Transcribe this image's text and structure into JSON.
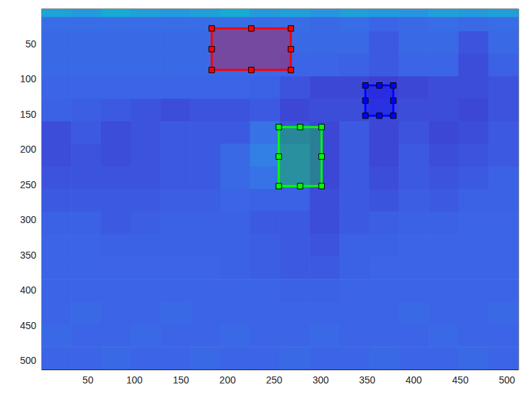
{
  "chart_data": {
    "type": "image",
    "xlim": [
      0.5,
      512.5
    ],
    "ylim": [
      512.5,
      0.5
    ],
    "xticks": [
      50,
      100,
      150,
      200,
      250,
      300,
      350,
      400,
      450,
      500
    ],
    "yticks": [
      50,
      100,
      150,
      200,
      250,
      300,
      350,
      400,
      450,
      500
    ],
    "grid": false,
    "clim": [
      0,
      100
    ],
    "cells": {
      "x_edges": [
        0.5,
        32,
        64,
        96,
        128,
        160,
        192,
        224,
        256,
        288,
        320,
        352,
        384,
        416,
        448,
        480,
        512.5
      ],
      "y_edges": [
        0.5,
        12,
        32,
        64,
        96,
        128,
        160,
        192,
        224,
        256,
        288,
        320,
        352,
        384,
        416,
        448,
        480,
        512.5
      ],
      "values": [
        [
          45,
          42,
          48,
          44,
          42,
          44,
          48,
          42,
          44,
          40,
          44,
          42,
          40,
          44,
          42,
          44
        ],
        [
          29,
          29,
          29,
          29,
          29,
          29,
          29,
          29,
          29,
          28,
          29,
          27,
          28,
          29,
          28,
          29
        ],
        [
          28,
          28,
          28,
          28,
          28,
          28,
          28,
          28,
          28,
          28,
          28,
          24,
          28,
          28,
          22,
          28
        ],
        [
          28,
          28,
          28,
          28,
          28,
          28,
          28,
          28,
          27,
          27,
          26,
          24,
          27,
          27,
          20,
          26
        ],
        [
          27,
          27,
          27,
          27,
          27,
          27,
          27,
          26,
          22,
          18,
          18,
          16,
          18,
          20,
          20,
          22
        ],
        [
          26,
          25,
          24,
          22,
          20,
          22,
          22,
          24,
          18,
          20,
          20,
          18,
          20,
          20,
          18,
          22
        ],
        [
          20,
          24,
          20,
          22,
          24,
          24,
          24,
          30,
          22,
          18,
          24,
          18,
          22,
          18,
          20,
          24
        ],
        [
          20,
          22,
          20,
          22,
          24,
          24,
          28,
          33,
          26,
          18,
          24,
          18,
          24,
          20,
          22,
          24
        ],
        [
          22,
          22,
          22,
          22,
          24,
          24,
          28,
          30,
          26,
          18,
          24,
          20,
          24,
          22,
          24,
          26
        ],
        [
          24,
          24,
          24,
          24,
          25,
          25,
          27,
          26,
          26,
          20,
          24,
          22,
          25,
          24,
          26,
          26
        ],
        [
          26,
          26,
          24,
          25,
          26,
          26,
          26,
          24,
          24,
          20,
          24,
          25,
          26,
          26,
          27,
          27
        ],
        [
          27,
          27,
          26,
          26,
          26,
          26,
          26,
          25,
          24,
          22,
          26,
          26,
          27,
          27,
          27,
          27
        ],
        [
          27,
          27,
          27,
          27,
          27,
          27,
          26,
          25,
          24,
          24,
          26,
          27,
          27,
          27,
          27,
          27
        ],
        [
          27,
          27,
          27,
          27,
          27,
          27,
          27,
          27,
          26,
          26,
          27,
          27,
          27,
          27,
          27,
          27
        ],
        [
          27,
          28,
          27,
          27,
          28,
          27,
          27,
          27,
          27,
          27,
          27,
          27,
          28,
          27,
          27,
          28
        ],
        [
          28,
          27,
          27,
          28,
          27,
          27,
          28,
          27,
          27,
          28,
          27,
          27,
          27,
          28,
          27,
          27
        ],
        [
          27,
          27,
          28,
          27,
          27,
          28,
          27,
          27,
          28,
          27,
          27,
          28,
          27,
          27,
          28,
          27
        ]
      ]
    },
    "rectangles": [
      {
        "color": "#ff0000",
        "x": [
          183,
          268
        ],
        "y": [
          28,
          87
        ]
      },
      {
        "color": "#0000ff",
        "x": [
          348,
          378
        ],
        "y": [
          109,
          152
        ]
      },
      {
        "color": "#00ff00",
        "x": [
          255,
          301
        ],
        "y": [
          168,
          252
        ]
      }
    ]
  }
}
